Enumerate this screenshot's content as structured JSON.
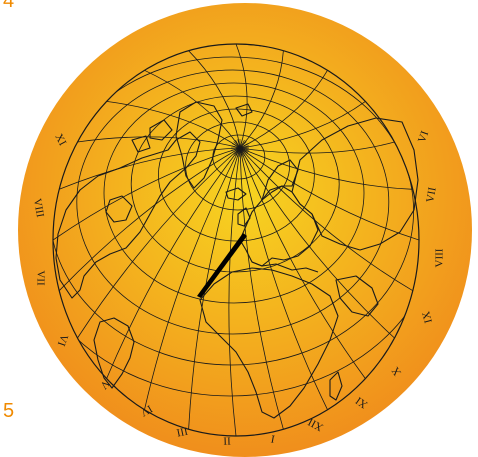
{
  "page_numbers": {
    "top": "4",
    "bottom": "5"
  },
  "colors": {
    "page_number": "#f08a00",
    "disc_center": "#f7d420",
    "disc_edge": "#f08c1c",
    "map_lines": "#1a1a1a",
    "hand": "#000000"
  },
  "hour_numerals": [
    "I",
    "II",
    "III",
    "IV",
    "V",
    "VI",
    "VII",
    "VIII",
    "IX",
    "X",
    "XI",
    "XII"
  ],
  "dial": {
    "left_numerals": [
      "XI",
      "VIII",
      "VII",
      "VI",
      "V",
      "IV",
      "III",
      "II",
      "I",
      "XII"
    ],
    "right_numerals": [
      "VI",
      "VII",
      "VIII",
      "IX",
      "X",
      "XI"
    ]
  }
}
